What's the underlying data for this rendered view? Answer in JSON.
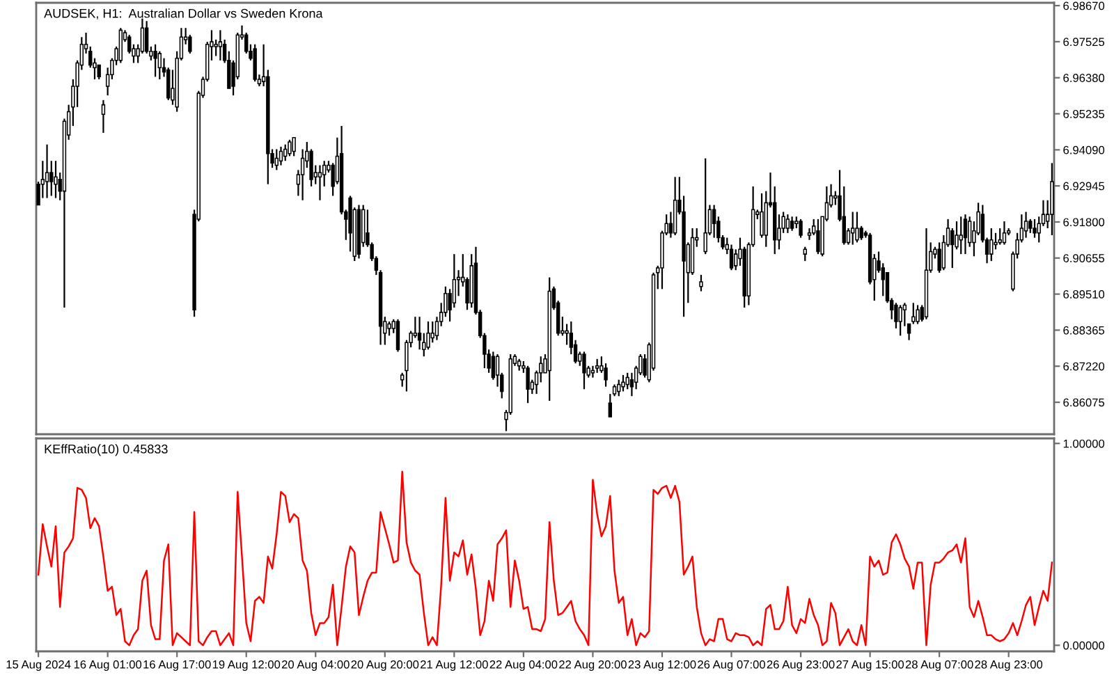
{
  "chart_data": [
    {
      "type": "candlestick",
      "title": "AUDSEK, H1:  Australian Dollar vs Sweden Krona",
      "categories": [
        null,
        null,
        null,
        null,
        null,
        null,
        null,
        null,
        null,
        null,
        null,
        null,
        null,
        null,
        null,
        null,
        null,
        null,
        null,
        null,
        null,
        null,
        null,
        null,
        null,
        null,
        null,
        null,
        null,
        null,
        null,
        null,
        null,
        null,
        null,
        null,
        null,
        null,
        null,
        null,
        null,
        null,
        null,
        null,
        null,
        null,
        null,
        null,
        null,
        null,
        null,
        null,
        null,
        null,
        null,
        null,
        null,
        null,
        null,
        null,
        null,
        null,
        null,
        null,
        null,
        null,
        null,
        null,
        null,
        null,
        null,
        null,
        null,
        null,
        null,
        null,
        null,
        null,
        null,
        null,
        null,
        null,
        null,
        null,
        null,
        null,
        null,
        null,
        null,
        null,
        null,
        null,
        null,
        null,
        null,
        null,
        null,
        null,
        null,
        null,
        null,
        null,
        null,
        null,
        null,
        null,
        null,
        null,
        null,
        null,
        null,
        null,
        null,
        null,
        null,
        null,
        null,
        null,
        null,
        null,
        null,
        null,
        null,
        null,
        null,
        null,
        null,
        null,
        null,
        null,
        null,
        null,
        null,
        null,
        null,
        null,
        null,
        null,
        null,
        null,
        null,
        null,
        null,
        null,
        null,
        null,
        null,
        null,
        null,
        null,
        null,
        null,
        null,
        null,
        null,
        null,
        null,
        null,
        null,
        null,
        null,
        null,
        null,
        null,
        null,
        null,
        null,
        null,
        null,
        null,
        null,
        null,
        null,
        null,
        null,
        null,
        null,
        null,
        null,
        null,
        null,
        null,
        null,
        null,
        null,
        null,
        null,
        null,
        null,
        null,
        null,
        null,
        null,
        null,
        null,
        null,
        null,
        null,
        null,
        null,
        null,
        null,
        null,
        null,
        null,
        null,
        null,
        null,
        null,
        null,
        null,
        null,
        null,
        null,
        null,
        null,
        null,
        null,
        null,
        null,
        null,
        null,
        null,
        null,
        null,
        null,
        null,
        null,
        null,
        null,
        null,
        null,
        null,
        null,
        null
      ],
      "ohlc": [
        [
          6.93,
          6.9308,
          6.9234,
          6.9234
        ],
        [
          6.93,
          6.9374,
          6.9256,
          6.9315
        ],
        [
          6.9308,
          6.9426,
          6.9256,
          6.9337
        ],
        [
          6.9337,
          6.9374,
          6.9263,
          6.9308
        ],
        [
          6.93,
          6.9374,
          6.9256,
          6.9323
        ],
        [
          6.9315,
          6.9337,
          6.9249,
          6.9278
        ],
        [
          6.9278,
          6.9508,
          6.8908,
          6.95
        ],
        [
          6.9456,
          6.9552,
          6.9441,
          6.953
        ],
        [
          6.9545,
          6.9633,
          6.9485,
          6.9611
        ],
        [
          6.9611,
          6.9693,
          6.9545,
          6.9685
        ],
        [
          6.9678,
          6.9767,
          6.9663,
          6.9744
        ],
        [
          6.973,
          6.9781,
          6.9715,
          6.9744
        ],
        [
          6.9722,
          6.9737,
          6.967,
          6.9678
        ],
        [
          6.967,
          6.97,
          6.9633,
          6.9685
        ],
        [
          6.9678,
          6.9678,
          6.9633,
          6.9641
        ],
        [
          6.9522,
          6.9567,
          6.9463,
          6.9552
        ],
        [
          6.9611,
          6.967,
          6.9582,
          6.9648
        ],
        [
          6.9648,
          6.97,
          6.9633,
          6.9693
        ],
        [
          6.9693,
          6.9737,
          6.9678,
          6.973
        ],
        [
          6.9693,
          6.9796,
          6.9685,
          6.9789
        ],
        [
          6.9759,
          6.9789,
          6.9752,
          6.9781
        ],
        [
          6.9767,
          6.9774,
          6.9715,
          6.9722
        ],
        [
          6.9707,
          6.9744,
          6.9685,
          6.973
        ],
        [
          6.9707,
          6.9744,
          6.9685,
          6.973
        ],
        [
          6.9722,
          6.9826,
          6.9715,
          6.9796
        ],
        [
          6.9796,
          6.9818,
          6.9715,
          6.9722
        ],
        [
          6.9707,
          6.9737,
          6.9693,
          6.9722
        ],
        [
          6.9722,
          6.9744,
          6.9641,
          6.97
        ],
        [
          6.967,
          6.9722,
          6.9633,
          6.9715
        ],
        [
          6.967,
          6.97,
          6.9641,
          6.9656
        ],
        [
          6.9663,
          6.967,
          6.9567,
          6.9574
        ],
        [
          6.9567,
          6.9663,
          6.9552,
          6.9604
        ],
        [
          6.9545,
          6.9722,
          6.953,
          6.97
        ],
        [
          6.97,
          6.9796,
          6.9693,
          6.9767
        ],
        [
          6.9759,
          6.9796,
          6.9744,
          6.9767
        ],
        [
          6.9767,
          6.9774,
          6.9715,
          6.9722
        ],
        [
          6.9204,
          6.9219,
          6.8879,
          6.8901
        ],
        [
          6.9189,
          6.9596,
          6.9182,
          6.9589
        ],
        [
          6.9582,
          6.9641,
          6.9574,
          6.9633
        ],
        [
          6.9633,
          6.9752,
          6.9626,
          6.9744
        ],
        [
          6.9737,
          6.9789,
          6.9693,
          6.9752
        ],
        [
          6.9737,
          6.9759,
          6.9707,
          6.9744
        ],
        [
          6.9737,
          6.9789,
          6.9693,
          6.9752
        ],
        [
          6.9744,
          6.9759,
          6.9685,
          6.9693
        ],
        [
          6.9693,
          6.9722,
          6.9604,
          6.9604
        ],
        [
          6.9685,
          6.9693,
          6.9582,
          6.9611
        ],
        [
          6.9641,
          6.9781,
          6.9633,
          6.9774
        ],
        [
          6.9767,
          6.9804,
          6.9759,
          6.9774
        ],
        [
          6.9774,
          6.9781,
          6.9715,
          6.9722
        ],
        [
          6.9722,
          6.9744,
          6.9693,
          6.97
        ],
        [
          6.973,
          6.9744,
          6.9626,
          6.9633
        ],
        [
          6.9619,
          6.9648,
          6.9611,
          6.9633
        ],
        [
          6.9626,
          6.9744,
          6.9611,
          6.9641
        ],
        [
          6.9641,
          6.9663,
          6.93,
          6.9397
        ],
        [
          6.9397,
          6.9411,
          6.9352,
          6.9367
        ],
        [
          6.936,
          6.9411,
          6.9345,
          6.9382
        ],
        [
          6.9374,
          6.9419,
          6.936,
          6.9404
        ],
        [
          6.9389,
          6.9426,
          6.9374,
          6.9411
        ],
        [
          6.9397,
          6.9441,
          6.9389,
          6.9434
        ],
        [
          6.9404,
          6.9448,
          6.9389,
          6.9448
        ],
        [
          6.93,
          6.9345,
          6.9263,
          6.933
        ],
        [
          6.933,
          6.9411,
          6.9249,
          6.9382
        ],
        [
          6.9374,
          6.9434,
          6.9352,
          6.9404
        ],
        [
          6.9404,
          6.9411,
          6.9293,
          6.9315
        ],
        [
          6.9323,
          6.936,
          6.93,
          6.9337
        ],
        [
          6.9323,
          6.936,
          6.9249,
          6.9337
        ],
        [
          6.933,
          6.9374,
          6.9293,
          6.936
        ],
        [
          6.9345,
          6.9374,
          6.9337,
          6.936
        ],
        [
          6.936,
          6.9367,
          6.9263,
          6.9293
        ],
        [
          6.9308,
          6.9448,
          6.93,
          6.9389
        ],
        [
          6.9397,
          6.9485,
          6.9204,
          6.9212
        ],
        [
          6.9212,
          6.9219,
          6.9123,
          6.9189
        ],
        [
          6.9256,
          6.9263,
          6.9086,
          6.9145
        ],
        [
          6.9071,
          6.9226,
          6.9056,
          6.9219
        ],
        [
          6.9219,
          6.9234,
          6.9064,
          6.9078
        ],
        [
          6.9115,
          6.9234,
          6.9101,
          6.9219
        ],
        [
          6.9145,
          6.9219,
          6.9101,
          6.9108
        ],
        [
          6.9108,
          6.9115,
          6.9056,
          6.9064
        ],
        [
          6.9064,
          6.9071,
          6.9012,
          6.9027
        ],
        [
          6.9019,
          6.9027,
          6.879,
          6.8849
        ],
        [
          6.8827,
          6.8879,
          6.879,
          6.8864
        ],
        [
          6.8842,
          6.8864,
          6.8819,
          6.8856
        ],
        [
          6.8842,
          6.8871,
          6.8827,
          6.8864
        ],
        [
          6.8864,
          6.8871,
          6.8768,
          6.8775
        ],
        [
          6.8679,
          6.8701,
          6.8657,
          6.8694
        ],
        [
          6.8708,
          6.8805,
          6.8642,
          6.8797
        ],
        [
          6.8797,
          6.8834,
          6.8782,
          6.8827
        ],
        [
          6.8819,
          6.8879,
          6.8812,
          6.8827
        ],
        [
          6.8827,
          6.8879,
          6.8775,
          6.8805
        ],
        [
          6.8775,
          6.8827,
          6.8753,
          6.8797
        ],
        [
          6.8782,
          6.8864,
          6.8775,
          6.8827
        ],
        [
          6.8812,
          6.8864,
          6.8797,
          6.8827
        ],
        [
          6.8819,
          6.8879,
          6.8805,
          6.8864
        ],
        [
          6.8864,
          6.8923,
          6.8849,
          6.8893
        ],
        [
          6.8893,
          6.8975,
          6.8879,
          6.8953
        ],
        [
          6.8953,
          6.8967,
          6.8864,
          6.8901
        ],
        [
          6.8923,
          6.9078,
          6.8908,
          6.8997
        ],
        [
          6.8997,
          6.9027,
          6.8945,
          6.9004
        ],
        [
          6.899,
          6.9078,
          6.8975,
          6.9004
        ],
        [
          6.8997,
          6.9004,
          6.8901,
          6.8923
        ],
        [
          6.8923,
          6.9078,
          6.8908,
          6.9041
        ],
        [
          6.9049,
          6.9101,
          6.8886,
          6.8893
        ],
        [
          6.8893,
          6.8901,
          6.8812,
          6.8819
        ],
        [
          6.8819,
          6.8827,
          6.8716,
          6.876
        ],
        [
          6.876,
          6.8775,
          6.8701,
          6.8716
        ],
        [
          6.8753,
          6.8768,
          6.8679,
          6.8686
        ],
        [
          6.8694,
          6.876,
          6.8657,
          6.8753
        ],
        [
          6.8694,
          6.8701,
          6.862,
          6.8642
        ],
        [
          6.8553,
          6.8583,
          6.8516,
          6.8575
        ],
        [
          6.8575,
          6.876,
          6.8568,
          6.8745
        ],
        [
          6.8731,
          6.876,
          6.8723,
          6.8753
        ],
        [
          6.8723,
          6.8745,
          6.8708,
          6.8738
        ],
        [
          6.8716,
          6.8738,
          6.8701,
          6.8723
        ],
        [
          6.8716,
          6.8723,
          6.8605,
          6.8649
        ],
        [
          6.8649,
          6.8679,
          6.8634,
          6.8671
        ],
        [
          6.8664,
          6.8708,
          6.8634,
          6.8701
        ],
        [
          6.8701,
          6.8753,
          6.8671,
          6.8731
        ],
        [
          6.8701,
          6.876,
          6.8701,
          6.8745
        ],
        [
          6.8708,
          6.9004,
          6.8612,
          6.896
        ],
        [
          6.8967,
          6.8975,
          6.8901,
          6.8908
        ],
        [
          6.8923,
          6.893,
          6.8819,
          6.8827
        ],
        [
          6.8827,
          6.8879,
          6.8819,
          6.8834
        ],
        [
          6.8827,
          6.8856,
          6.879,
          6.8834
        ],
        [
          6.8827,
          6.8864,
          6.876,
          6.8782
        ],
        [
          6.879,
          6.8805,
          6.8731,
          6.8738
        ],
        [
          6.8738,
          6.8768,
          6.8723,
          6.876
        ],
        [
          6.876,
          6.8768,
          6.8649,
          6.8701
        ],
        [
          6.8694,
          6.8723,
          6.8686,
          6.8716
        ],
        [
          6.8701,
          6.8723,
          6.8686,
          6.8708
        ],
        [
          6.8716,
          6.8745,
          6.8701,
          6.8723
        ],
        [
          6.8708,
          6.8753,
          6.8701,
          6.8723
        ],
        [
          6.8716,
          6.8731,
          6.8657,
          6.8679
        ],
        [
          6.8605,
          6.8634,
          6.8561,
          6.8561
        ],
        [
          6.8634,
          6.8664,
          6.8627,
          6.8657
        ],
        [
          6.8642,
          6.8679,
          6.8627,
          6.8664
        ],
        [
          6.8657,
          6.8694,
          6.8642,
          6.8671
        ],
        [
          6.8664,
          6.8701,
          6.8649,
          6.8686
        ],
        [
          6.8679,
          6.8701,
          6.8627,
          6.8657
        ],
        [
          6.8671,
          6.8723,
          6.8649,
          6.8716
        ],
        [
          6.8701,
          6.876,
          6.8694,
          6.8753
        ],
        [
          6.8745,
          6.876,
          6.8686,
          6.8694
        ],
        [
          6.8679,
          6.8797,
          6.8671,
          6.879
        ],
        [
          6.8716,
          6.9019,
          6.8708,
          6.9012
        ],
        [
          6.9019,
          6.9041,
          6.8967,
          6.9034
        ],
        [
          6.9034,
          6.9152,
          6.8967,
          6.9145
        ],
        [
          6.9145,
          6.9204,
          6.9138,
          6.9175
        ],
        [
          6.9175,
          6.9212,
          6.913,
          6.9145
        ],
        [
          6.9145,
          6.9323,
          6.9138,
          6.9249
        ],
        [
          6.9249,
          6.9323,
          6.9204,
          6.9212
        ],
        [
          6.9212,
          6.9263,
          6.8879,
          6.9056
        ],
        [
          6.9019,
          6.9115,
          6.8923,
          6.9108
        ],
        [
          6.9019,
          6.916,
          6.9012,
          6.913
        ],
        [
          6.9123,
          6.916,
          6.9101,
          6.913
        ],
        [
          6.8975,
          6.9012,
          6.896,
          6.899
        ],
        [
          6.9086,
          6.9382,
          6.9078,
          6.9145
        ],
        [
          6.9145,
          6.9234,
          6.9138,
          6.9219
        ],
        [
          6.9219,
          6.9234,
          6.913,
          6.9175
        ],
        [
          6.9182,
          6.9197,
          6.9115,
          6.913
        ],
        [
          6.913,
          6.9138,
          6.9093,
          6.9101
        ],
        [
          6.9093,
          6.913,
          6.9078,
          6.9108
        ],
        [
          6.9093,
          6.9108,
          6.9027,
          6.9034
        ],
        [
          6.9041,
          6.9093,
          6.9027,
          6.9078
        ],
        [
          6.9064,
          6.913,
          6.9041,
          6.9093
        ],
        [
          6.9093,
          6.9101,
          6.8908,
          6.8945
        ],
        [
          6.8945,
          6.9115,
          6.8916,
          6.9108
        ],
        [
          6.9108,
          6.9293,
          6.9101,
          6.9219
        ],
        [
          6.9204,
          6.9219,
          6.9189,
          6.9212
        ],
        [
          6.9138,
          6.9271,
          6.913,
          6.9212
        ],
        [
          6.9138,
          6.9278,
          6.9101,
          6.9241
        ],
        [
          6.9241,
          6.9337,
          6.9226,
          6.9234
        ],
        [
          6.9241,
          6.9293,
          6.9078,
          6.9123
        ],
        [
          6.9123,
          6.9204,
          6.9093,
          6.916
        ],
        [
          6.916,
          6.9212,
          6.9145,
          6.9197
        ],
        [
          6.916,
          6.9204,
          6.9145,
          6.9189
        ],
        [
          6.9182,
          6.9197,
          6.9152,
          6.916
        ],
        [
          6.9175,
          6.9197,
          6.916,
          6.9182
        ],
        [
          6.9182,
          6.9189,
          6.913,
          6.9138
        ],
        [
          6.9078,
          6.9101,
          6.9056,
          6.9093
        ],
        [
          6.9138,
          6.916,
          6.9123,
          6.9145
        ],
        [
          6.9145,
          6.9189,
          6.9138,
          6.9167
        ],
        [
          6.9152,
          6.9189,
          6.9078,
          6.9086
        ],
        [
          6.9078,
          6.9197,
          6.9071,
          6.9197
        ],
        [
          6.9189,
          6.9293,
          6.9182,
          6.9241
        ],
        [
          6.9234,
          6.93,
          6.9226,
          6.9263
        ],
        [
          6.9256,
          6.9278,
          6.9234,
          6.9263
        ],
        [
          6.9263,
          6.9345,
          6.9182,
          6.9189
        ],
        [
          6.9197,
          6.9293,
          6.9108,
          6.9115
        ],
        [
          6.9115,
          6.916,
          6.9108,
          6.9152
        ],
        [
          6.9145,
          6.9212,
          6.9108,
          6.916
        ],
        [
          6.9123,
          6.9212,
          6.9115,
          6.916
        ],
        [
          6.916,
          6.9167,
          6.9123,
          6.913
        ],
        [
          6.9145,
          6.9152,
          6.913,
          6.9138
        ],
        [
          6.9138,
          6.9145,
          6.8982,
          6.899
        ],
        [
          6.8997,
          6.9078,
          6.893,
          6.9064
        ],
        [
          6.9056,
          6.9086,
          6.9019,
          6.9027
        ],
        [
          6.9034,
          6.9049,
          6.8945,
          6.8997
        ],
        [
          6.9019,
          6.9019,
          6.8923,
          6.893
        ],
        [
          6.893,
          6.8938,
          6.8871,
          6.8901
        ],
        [
          6.8916,
          6.8923,
          6.8842,
          6.8864
        ],
        [
          6.8864,
          6.8916,
          6.8819,
          6.8908
        ],
        [
          6.8901,
          6.8923,
          6.8849,
          6.8916
        ],
        [
          6.8856,
          6.8856,
          6.8805,
          6.8827
        ],
        [
          6.8864,
          6.8923,
          6.8856,
          6.8879
        ],
        [
          6.8864,
          6.8916,
          6.8856,
          6.8901
        ],
        [
          6.8908,
          6.8916,
          6.8864,
          6.8871
        ],
        [
          6.8879,
          6.916,
          6.8871,
          6.9027
        ],
        [
          6.9027,
          6.9115,
          6.9019,
          6.9086
        ],
        [
          6.9078,
          6.9101,
          6.9064,
          6.9093
        ],
        [
          6.9093,
          6.9115,
          6.9019,
          6.9027
        ],
        [
          6.9034,
          6.9138,
          6.9027,
          6.9115
        ],
        [
          6.9108,
          6.9189,
          6.9101,
          6.916
        ],
        [
          6.9152,
          6.916,
          6.9034,
          6.9108
        ],
        [
          6.9101,
          6.9182,
          6.9093,
          6.9138
        ],
        [
          6.9123,
          6.9197,
          6.9078,
          6.9138
        ],
        [
          6.9189,
          6.9204,
          6.9078,
          6.913
        ],
        [
          6.9115,
          6.9197,
          6.9101,
          6.9182
        ],
        [
          6.9115,
          6.9182,
          6.9071,
          6.9152
        ],
        [
          6.9145,
          6.9241,
          6.9138,
          6.9212
        ],
        [
          6.9204,
          6.9234,
          6.9115,
          6.9123
        ],
        [
          6.9123,
          6.913,
          6.9049,
          6.9078
        ],
        [
          6.9078,
          6.916,
          6.9056,
          6.9123
        ],
        [
          6.9108,
          6.9145,
          6.9093,
          6.9115
        ],
        [
          6.9115,
          6.916,
          6.9108,
          6.9123
        ],
        [
          6.9115,
          6.9182,
          6.9108,
          6.9145
        ],
        [
          6.9145,
          6.916,
          6.9138,
          6.9152
        ],
        [
          6.8967,
          6.9086,
          6.896,
          6.9078
        ],
        [
          6.9078,
          6.9145,
          6.9064,
          6.9123
        ],
        [
          6.9123,
          6.9204,
          6.9115,
          6.916
        ],
        [
          6.9152,
          6.9212,
          6.913,
          6.9182
        ],
        [
          6.9182,
          6.9189,
          6.9145,
          6.916
        ],
        [
          6.916,
          6.9189,
          6.913,
          6.9145
        ],
        [
          6.9145,
          6.9197,
          6.9115,
          6.9175
        ],
        [
          6.9175,
          6.9249,
          6.9167,
          6.9204
        ],
        [
          6.9182,
          6.9249,
          6.916,
          6.9204
        ],
        [
          6.9204,
          6.9367,
          6.9138,
          6.9308
        ]
      ],
      "ylim": [
        6.8506,
        6.9876
      ],
      "yticks": [
        {
          "value": 6.9867,
          "label": "6.98670"
        },
        6.97525,
        {
          "value": 6.9638,
          "label": "6.96380"
        },
        6.95235,
        {
          "value": 6.9409,
          "label": "6.94090"
        },
        6.92945,
        {
          "value": 6.918,
          "label": "6.91800"
        },
        6.90655,
        {
          "value": 6.8951,
          "label": "6.89510"
        },
        6.88365,
        {
          "value": 6.8722,
          "label": "6.87220"
        },
        6.86075
      ],
      "grid": false
    },
    {
      "type": "line",
      "title": "KEffRatio(10) 0.45833",
      "categories": [
        "15 Aug 2024",
        null,
        null,
        null,
        null,
        null,
        null,
        null,
        null,
        null,
        null,
        null,
        null,
        null,
        null,
        null,
        "16 Aug 01:00",
        null,
        null,
        null,
        null,
        null,
        null,
        null,
        null,
        null,
        null,
        null,
        null,
        null,
        null,
        null,
        "16 Aug 17:00",
        null,
        null,
        null,
        null,
        null,
        null,
        null,
        null,
        null,
        null,
        null,
        null,
        null,
        null,
        null,
        "19 Aug 12:00",
        null,
        null,
        null,
        null,
        null,
        null,
        null,
        null,
        null,
        null,
        null,
        null,
        null,
        null,
        null,
        "20 Aug 04:00",
        null,
        null,
        null,
        null,
        null,
        null,
        null,
        null,
        null,
        null,
        null,
        null,
        null,
        null,
        null,
        "20 Aug 20:00",
        null,
        null,
        null,
        null,
        null,
        null,
        null,
        null,
        null,
        null,
        null,
        null,
        null,
        null,
        null,
        "21 Aug 12:00",
        null,
        null,
        null,
        null,
        null,
        null,
        null,
        null,
        null,
        null,
        null,
        null,
        null,
        null,
        null,
        "22 Aug 04:00",
        null,
        null,
        null,
        null,
        null,
        null,
        null,
        null,
        null,
        null,
        null,
        null,
        null,
        null,
        null,
        "22 Aug 20:00",
        null,
        null,
        null,
        null,
        null,
        null,
        null,
        null,
        null,
        null,
        null,
        null,
        null,
        null,
        null,
        "23 Aug 12:00",
        null,
        null,
        null,
        null,
        null,
        null,
        null,
        null,
        null,
        null,
        null,
        null,
        null,
        null,
        null,
        "26 Aug 07:00",
        null,
        null,
        null,
        null,
        null,
        null,
        null,
        null,
        null,
        null,
        null,
        null,
        null,
        null,
        null,
        "26 Aug 23:00",
        null,
        null,
        null,
        null,
        null,
        null,
        null,
        null,
        null,
        null,
        null,
        null,
        null,
        null,
        null,
        "27 Aug 15:00",
        null,
        null,
        null,
        null,
        null,
        null,
        null,
        null,
        null,
        null,
        null,
        null,
        null,
        null,
        null,
        "28 Aug 07:00",
        null,
        null,
        null,
        null,
        null,
        null,
        null,
        null,
        null,
        null,
        null,
        null,
        null,
        null,
        null,
        "28 Aug 23:00",
        null,
        null,
        null,
        null,
        null,
        null,
        null,
        null,
        null,
        null
      ],
      "series": [
        {
          "color": "#ff0000",
          "values": [
            0.35,
            0.6,
            0.49,
            0.39,
            0.59,
            0.19,
            0.46,
            0.49,
            0.53,
            0.78,
            0.77,
            0.73,
            0.58,
            0.63,
            0.59,
            0.44,
            0.27,
            0.29,
            0.15,
            0.18,
            0.02,
            0.0,
            0.05,
            0.08,
            0.32,
            0.37,
            0.1,
            0.03,
            0.03,
            0.42,
            0.5,
            0.0,
            0.06,
            0.04,
            0.02,
            0.0,
            0.66,
            0.02,
            0.0,
            0.04,
            0.07,
            0.07,
            0.0,
            0.03,
            0.06,
            0.0,
            0.76,
            0.44,
            0.11,
            0.02,
            0.22,
            0.24,
            0.21,
            0.44,
            0.38,
            0.55,
            0.76,
            0.74,
            0.61,
            0.65,
            0.63,
            0.42,
            0.37,
            0.16,
            0.05,
            0.11,
            0.11,
            0.14,
            0.3,
            0.0,
            0.19,
            0.39,
            0.49,
            0.46,
            0.15,
            0.24,
            0.32,
            0.36,
            0.36,
            0.66,
            0.58,
            0.5,
            0.41,
            0.42,
            0.86,
            0.51,
            0.41,
            0.37,
            0.35,
            0.16,
            0.0,
            0.04,
            0.0,
            0.3,
            0.73,
            0.32,
            0.46,
            0.44,
            0.52,
            0.35,
            0.45,
            0.28,
            0.05,
            0.12,
            0.32,
            0.22,
            0.5,
            0.53,
            0.57,
            0.19,
            0.42,
            0.32,
            0.18,
            0.19,
            0.08,
            0.08,
            0.07,
            0.13,
            0.61,
            0.32,
            0.15,
            0.16,
            0.19,
            0.22,
            0.12,
            0.08,
            0.05,
            0.0,
            0.82,
            0.65,
            0.54,
            0.59,
            0.74,
            0.37,
            0.21,
            0.24,
            0.05,
            0.13,
            0.0,
            0.06,
            0.04,
            0.07,
            0.77,
            0.75,
            0.78,
            0.79,
            0.73,
            0.79,
            0.71,
            0.35,
            0.39,
            0.44,
            0.19,
            0.06,
            0.0,
            0.03,
            0.02,
            0.13,
            0.13,
            0.03,
            0.02,
            0.06,
            0.05,
            0.05,
            0.04,
            0.0,
            0.02,
            0.0,
            0.18,
            0.2,
            0.08,
            0.08,
            0.12,
            0.29,
            0.1,
            0.06,
            0.13,
            0.11,
            0.23,
            0.15,
            0.1,
            0.0,
            0.02,
            0.21,
            0.16,
            0.0,
            0.04,
            0.08,
            0.02,
            0.0,
            0.1,
            0.0,
            0.44,
            0.39,
            0.42,
            0.35,
            0.36,
            0.51,
            0.55,
            0.5,
            0.43,
            0.39,
            0.28,
            0.41,
            0.41,
            0.0,
            0.3,
            0.41,
            0.41,
            0.43,
            0.46,
            0.47,
            0.5,
            0.41,
            0.53,
            0.19,
            0.14,
            0.22,
            0.14,
            0.05,
            0.05,
            0.03,
            0.02,
            0.03,
            0.06,
            0.11,
            0.05,
            0.12,
            0.2,
            0.24,
            0.1,
            0.19,
            0.27,
            0.22,
            0.41
          ]
        }
      ],
      "ylim": [
        -0.03,
        1.025
      ],
      "yticks": [
        {
          "value": 1,
          "label": "1.00000"
        },
        {
          "value": 0,
          "label": "0.00000"
        }
      ],
      "grid": false
    }
  ]
}
